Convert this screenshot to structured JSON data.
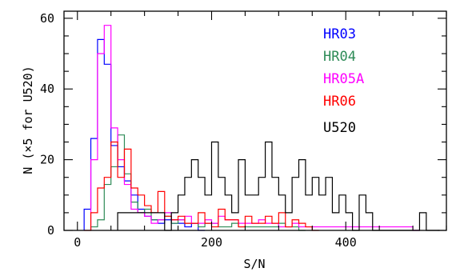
{
  "chart_data": {
    "type": "histogram",
    "xlabel": "S/N",
    "ylabel": "N (×5 for U520)",
    "xlim": [
      -20,
      550
    ],
    "ylim": [
      0,
      62
    ],
    "x_ticks": [
      0,
      200,
      400
    ],
    "y_ticks": [
      0,
      20,
      40,
      60
    ],
    "x_tick_labels": [
      "0",
      "200",
      "400"
    ],
    "y_tick_labels": [
      "0",
      "20",
      "40",
      "60"
    ],
    "legend_position": "top-right",
    "series": [
      {
        "name": "HR03",
        "color": "#0000ff",
        "x": [
          10,
          20,
          30,
          40,
          50,
          60,
          70,
          80,
          90,
          100,
          110,
          120,
          130,
          140,
          150,
          160,
          170,
          180
        ],
        "values": [
          6,
          26,
          54,
          47,
          24,
          18,
          14,
          10,
          6,
          4,
          3,
          2,
          3,
          2,
          2,
          1,
          2,
          0
        ]
      },
      {
        "name": "HR04",
        "color": "#2e8b57",
        "x": [
          20,
          30,
          40,
          50,
          60,
          70,
          80,
          90,
          100,
          110,
          120,
          130,
          140,
          150,
          160,
          170,
          180,
          190,
          200,
          210,
          220,
          230,
          240,
          250,
          260,
          270,
          280,
          290,
          300,
          310,
          320,
          330
        ],
        "values": [
          1,
          3,
          13,
          18,
          27,
          16,
          8,
          5,
          6,
          3,
          3,
          4,
          2,
          3,
          2,
          2,
          1,
          2,
          2,
          1,
          1,
          2,
          1,
          1,
          1,
          1,
          1,
          1,
          2,
          1,
          1,
          0
        ]
      },
      {
        "name": "HR05A",
        "color": "#ff00ff",
        "x": [
          20,
          30,
          40,
          50,
          60,
          70,
          80,
          90,
          100,
          110,
          120,
          130,
          140,
          150,
          160,
          170,
          180,
          190,
          200,
          210,
          220,
          230,
          240,
          250,
          260,
          270,
          280,
          290,
          300,
          310,
          320,
          330,
          340,
          350,
          360,
          370,
          380,
          390,
          400,
          410,
          420,
          430,
          440,
          450,
          460,
          470,
          480,
          490,
          500
        ],
        "values": [
          20,
          50,
          58,
          29,
          20,
          13,
          6,
          5,
          4,
          2,
          3,
          5,
          3,
          3,
          4,
          2,
          2,
          3,
          2,
          4,
          3,
          3,
          2,
          2,
          2,
          3,
          2,
          2,
          1,
          1,
          2,
          1,
          1,
          1,
          1,
          1,
          1,
          1,
          1,
          1,
          1,
          1,
          1,
          1,
          1,
          1,
          1,
          1,
          0
        ]
      },
      {
        "name": "HR06",
        "color": "#ff0000",
        "x": [
          10,
          20,
          30,
          40,
          50,
          60,
          70,
          80,
          90,
          100,
          110,
          120,
          130,
          140,
          150,
          160,
          170,
          180,
          190,
          200,
          210,
          220,
          230,
          240,
          250,
          260,
          270,
          280,
          290,
          300,
          310,
          320,
          330,
          340,
          350
        ],
        "values": [
          0,
          5,
          12,
          15,
          25,
          15,
          23,
          12,
          10,
          7,
          5,
          11,
          4,
          3,
          4,
          2,
          2,
          5,
          2,
          1,
          6,
          3,
          3,
          1,
          4,
          2,
          2,
          4,
          2,
          5,
          1,
          3,
          2,
          1,
          0
        ]
      },
      {
        "name": "U520",
        "color": "#000000",
        "x": [
          60,
          70,
          80,
          90,
          100,
          110,
          120,
          130,
          140,
          150,
          160,
          170,
          180,
          190,
          200,
          210,
          220,
          230,
          240,
          250,
          260,
          270,
          280,
          290,
          300,
          310,
          320,
          330,
          340,
          350,
          360,
          370,
          380,
          390,
          400,
          410,
          420,
          430,
          440,
          450,
          460,
          470,
          480,
          490,
          500,
          510,
          520,
          530
        ],
        "values": [
          5,
          5,
          5,
          5,
          5,
          5,
          5,
          0,
          5,
          10,
          15,
          20,
          15,
          10,
          25,
          15,
          10,
          5,
          20,
          10,
          10,
          15,
          25,
          15,
          10,
          5,
          15,
          20,
          10,
          15,
          10,
          15,
          5,
          10,
          5,
          0,
          10,
          5,
          0,
          0,
          0,
          0,
          0,
          0,
          0,
          5,
          0,
          0
        ]
      }
    ]
  }
}
